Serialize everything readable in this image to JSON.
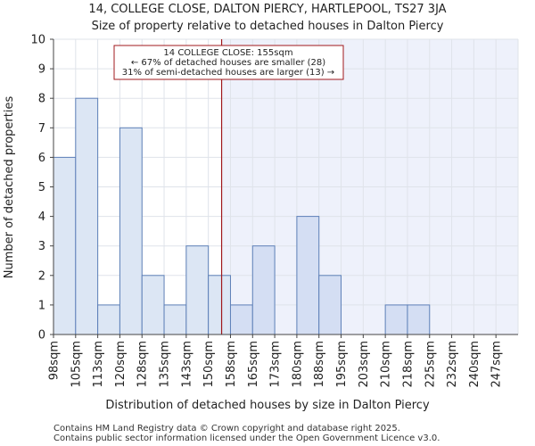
{
  "chart_data": {
    "type": "bar",
    "title": "14, COLLEGE CLOSE, DALTON PIERCY, HARTLEPOOL, TS27 3JA",
    "subtitle": "Size of property relative to detached houses in Dalton Piercy",
    "xlabel": "Distribution of detached houses by size in Dalton Piercy",
    "ylabel": "Number of detached properties",
    "categories": [
      "98sqm",
      "105sqm",
      "113sqm",
      "120sqm",
      "128sqm",
      "135sqm",
      "143sqm",
      "150sqm",
      "158sqm",
      "165sqm",
      "173sqm",
      "180sqm",
      "188sqm",
      "195sqm",
      "203sqm",
      "210sqm",
      "218sqm",
      "225sqm",
      "232sqm",
      "240sqm",
      "247sqm"
    ],
    "values": [
      6,
      8,
      1,
      7,
      2,
      1,
      3,
      2,
      1,
      3,
      0,
      4,
      2,
      0,
      0,
      1,
      1,
      0,
      0,
      0,
      0
    ],
    "yticks": [
      0,
      1,
      2,
      3,
      4,
      5,
      6,
      7,
      8,
      9,
      10
    ],
    "ylim": [
      0,
      10
    ],
    "grid": true,
    "marker_position_bin": 7.6,
    "annotation": {
      "line1": "14 COLLEGE CLOSE: 155sqm",
      "line2": "← 67% of detached houses are smaller (28)",
      "line3": "31% of semi-detached houses are larger (13) →"
    },
    "colors": {
      "bar_left": "#dce6f4",
      "bar_right": "#d4def3",
      "bar_edge": "#5e80b8",
      "highlight_bg": "#eef1fb",
      "marker": "#a0181c",
      "grid": "#dfe3ea"
    }
  },
  "footer": {
    "line1": "Contains HM Land Registry data © Crown copyright and database right 2025.",
    "line2": "Contains public sector information licensed under the Open Government Licence v3.0."
  }
}
